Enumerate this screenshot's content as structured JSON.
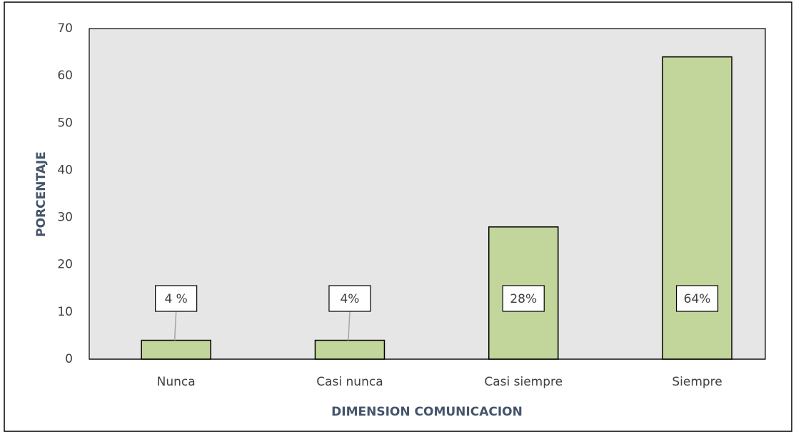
{
  "chart_data": {
    "type": "bar",
    "categories": [
      "Nunca",
      "Casi nunca",
      "Casi siempre",
      "Siempre"
    ],
    "values": [
      4,
      4,
      28,
      64
    ],
    "value_labels": [
      "4 %",
      "4%",
      "28%",
      "64%"
    ],
    "color": "#c2d59b",
    "x_label": "DIMENSION COMUNICACION",
    "y_label": "PORCENTAJE",
    "ylim": [
      0,
      70
    ],
    "yticks": [
      0,
      10,
      20,
      30,
      40,
      50,
      60,
      70
    ],
    "grid": false
  }
}
